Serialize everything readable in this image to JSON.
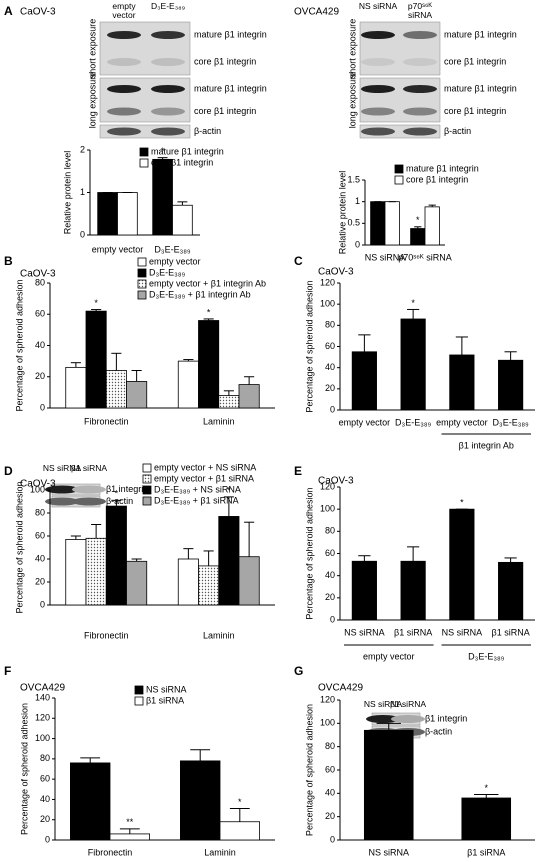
{
  "panels": [
    "A",
    "B",
    "C",
    "D",
    "E",
    "F",
    "G"
  ],
  "blots": [
    {
      "title": "CaOV-3",
      "lanes": [
        "empty vector",
        "D₃E-E₃₈₉"
      ],
      "bands": [
        "mature β1 integrin",
        "core β1 integrin",
        "mature β1 integrin",
        "core β1 integrin",
        "β-actin"
      ],
      "exposures": [
        "short exposure",
        "long exposure"
      ]
    },
    {
      "title": "OVCA429",
      "lanes": [
        "NS siRNA",
        "p70ˢ⁶ᴷ siRNA"
      ],
      "bands": [
        "mature β1 integrin",
        "core β1 integrin",
        "mature β1 integrin",
        "core β1 integrin",
        "β-actin"
      ],
      "exposures": [
        "short exposure",
        "long exposure"
      ]
    },
    {
      "lanes": [
        "NS siRNA",
        "β1 siRNA"
      ],
      "bands": [
        "β1 integrin",
        "β-actin"
      ]
    },
    {
      "lanes": [
        "NS siRNA",
        "β1 siRNA"
      ],
      "bands": [
        "β1 integrin",
        "β-actin"
      ]
    }
  ],
  "chart_data": [
    {
      "type": "bar",
      "ylabel": "Relative protein level",
      "categories": [
        "empty vector",
        "D₃E-E₃₈₉"
      ],
      "series": [
        {
          "name": "mature β1 integrin",
          "color": "#000000",
          "values": [
            1,
            1.78
          ],
          "errors": [
            0,
            0.04
          ]
        },
        {
          "name": "core β1 integrin",
          "color": "#ffffff",
          "values": [
            1,
            0.7
          ],
          "errors": [
            0,
            0.08
          ]
        }
      ],
      "ylim": [
        0,
        2
      ],
      "yticks": [
        0,
        1,
        2
      ],
      "annotations": [
        {
          "text": "*"
        }
      ]
    },
    {
      "type": "bar",
      "ylabel": "Relative protein level",
      "categories": [
        "NS siRNA",
        "p70ˢ⁶ᴷ siRNA"
      ],
      "series": [
        {
          "name": "mature β1 integrin",
          "color": "#000000",
          "values": [
            1,
            0.38
          ],
          "errors": [
            0,
            0.04
          ]
        },
        {
          "name": "core β1 integrin",
          "color": "#ffffff",
          "values": [
            1,
            0.88
          ],
          "errors": [
            0,
            0.04
          ]
        }
      ],
      "ylim": [
        0,
        1.5
      ],
      "yticks": [
        0,
        0.5,
        1,
        1.5
      ],
      "annotations": [
        {
          "text": "*"
        }
      ]
    },
    {
      "type": "bar",
      "title": "CaOV-3",
      "ylabel": "Percentage of spheroid adhesion",
      "categories": [
        "Fibronectin",
        "Laminin"
      ],
      "series": [
        {
          "name": "empty vector",
          "color": "#ffffff",
          "values": [
            26,
            30
          ],
          "errors": [
            3,
            1
          ]
        },
        {
          "name": "D₃E-E₃₈₉",
          "color": "#000000",
          "values": [
            62,
            56
          ],
          "errors": [
            1,
            1
          ]
        },
        {
          "name": "empty vector + β1 integrin Ab",
          "color": "#ffffff",
          "pattern": "dots",
          "values": [
            24,
            8
          ],
          "errors": [
            11,
            3
          ]
        },
        {
          "name": "D₃E-E₃₈₉ + β1 integrin Ab",
          "color": "#a6a6a6",
          "values": [
            17,
            15
          ],
          "errors": [
            7,
            5
          ]
        }
      ],
      "ylim": [
        0,
        80
      ],
      "yticks": [
        0,
        20,
        40,
        60,
        80
      ],
      "annotations": [
        {
          "text": "*"
        },
        {
          "text": "*"
        }
      ]
    },
    {
      "type": "bar",
      "title": "CaOV-3",
      "ylabel": "Percentage of spheroid adhesion",
      "categories": [
        "empty vector",
        "D₃E-E₃₈₉",
        "empty vector",
        "D₃E-E₃₈₉"
      ],
      "series": [
        {
          "color": "#000000",
          "values": [
            55,
            86,
            52,
            47
          ],
          "errors": [
            16,
            9,
            17,
            8
          ]
        }
      ],
      "ylim": [
        0,
        120
      ],
      "yticks": [
        0,
        20,
        40,
        60,
        80,
        100,
        120
      ],
      "groups": [
        "β1 integrin Ab"
      ],
      "annotations": [
        {
          "text": "*"
        }
      ]
    },
    {
      "type": "bar",
      "title": "CaOV-3",
      "ylabel": "Percentage of spheroid adhesion",
      "categories": [
        "Fibronectin",
        "Laminin"
      ],
      "series": [
        {
          "name": "empty vector + NS siRNA",
          "color": "#ffffff",
          "values": [
            57,
            40
          ],
          "errors": [
            3,
            9
          ]
        },
        {
          "name": "empty vector + β1 siRNA",
          "color": "#ffffff",
          "pattern": "dots",
          "values": [
            58,
            34
          ],
          "errors": [
            12,
            13
          ]
        },
        {
          "name": "D₃E-E₃₈₉ + NS siRNA",
          "color": "#000000",
          "values": [
            86,
            77
          ],
          "errors": [
            5,
            17
          ]
        },
        {
          "name": "D₃E-E₃₈₉ + β1 siRNA",
          "color": "#a6a6a6",
          "values": [
            38,
            42
          ],
          "errors": [
            2,
            30
          ]
        }
      ],
      "ylim": [
        0,
        100
      ],
      "yticks": [
        0,
        20,
        40,
        60,
        80,
        100
      ],
      "annotations": [
        {
          "text": "*"
        },
        {
          "text": "*"
        }
      ]
    },
    {
      "type": "bar",
      "title": "CaOV-3",
      "ylabel": "Percentage of spheroid adhesion",
      "categories": [
        "NS siRNA",
        "β1 siRNA",
        "NS siRNA",
        "β1 siRNA"
      ],
      "series": [
        {
          "color": "#000000",
          "values": [
            53,
            53,
            100,
            52
          ],
          "errors": [
            5,
            13,
            0,
            4
          ]
        }
      ],
      "ylim": [
        0,
        120
      ],
      "yticks": [
        0,
        20,
        40,
        60,
        80,
        100,
        120
      ],
      "groups": [
        "empty vector",
        "D₃E-E₃₈₉"
      ],
      "annotations": [
        {
          "text": "*"
        }
      ]
    },
    {
      "type": "bar",
      "title": "OVCA429",
      "ylabel": "Percentage of spheroid adhesion",
      "categories": [
        "Fibronectin",
        "Laminin"
      ],
      "series": [
        {
          "name": "NS siRNA",
          "color": "#000000",
          "values": [
            76,
            78
          ],
          "errors": [
            5,
            11
          ]
        },
        {
          "name": "β1 siRNA",
          "color": "#ffffff",
          "values": [
            6,
            18
          ],
          "errors": [
            5,
            13
          ]
        }
      ],
      "ylim": [
        0,
        140
      ],
      "yticks": [
        0,
        20,
        40,
        60,
        80,
        100,
        120,
        140
      ],
      "annotations": [
        {
          "text": "**"
        },
        {
          "text": "*"
        }
      ]
    },
    {
      "type": "bar",
      "title": "OVCA429",
      "ylabel": "Percentage of spheroid adhesion",
      "categories": [
        "NS siRNA",
        "β1 siRNA"
      ],
      "series": [
        {
          "color": "#000000",
          "values": [
            94,
            36
          ],
          "errors": [
            6,
            3
          ]
        }
      ],
      "ylim": [
        0,
        120
      ],
      "yticks": [
        0,
        20,
        40,
        60,
        80,
        100,
        120
      ],
      "annotations": [
        {
          "text": "*"
        }
      ]
    }
  ]
}
